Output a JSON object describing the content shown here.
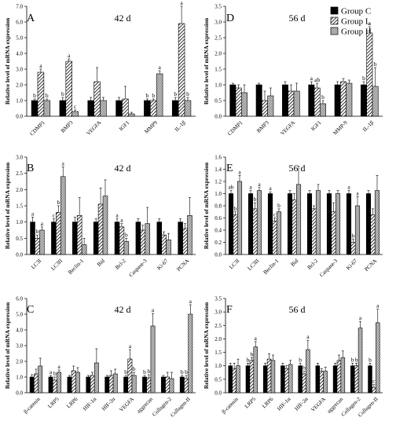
{
  "chart_data": [
    {
      "type": "bar",
      "panel": "A",
      "title": "42 d",
      "ylabel": "Relative level of mRNA expression",
      "ylim": [
        0,
        7
      ],
      "yticks": [
        "0.0",
        "1.0",
        "2.0",
        "3.0",
        "4.0",
        "5.0",
        "6.0",
        "7.0"
      ],
      "categories": [
        "CDMP1",
        "BMP3",
        "VEGFA",
        "IGF1",
        "MMP9",
        "IL-1β"
      ],
      "series": [
        {
          "name": "Group C",
          "values": [
            1.0,
            1.0,
            1.0,
            1.0,
            1.0,
            1.0
          ],
          "errors": [
            0.1,
            0.2,
            0.2,
            0.2,
            0.1,
            0.2
          ]
        },
        {
          "name": "Group L",
          "values": [
            2.8,
            3.5,
            2.2,
            1.1,
            1.0,
            5.9
          ],
          "errors": [
            0.2,
            0.15,
            0.9,
            0.8,
            0.1,
            1.1
          ]
        },
        {
          "name": "Group H",
          "values": [
            1.0,
            0.3,
            1.0,
            0.15,
            2.7,
            1.0
          ],
          "errors": [
            0.1,
            0.1,
            0.2,
            0.1,
            0.2,
            0.2
          ]
        }
      ],
      "labels": [
        [
          "b",
          "a",
          "b"
        ],
        [
          "b",
          "a",
          "c"
        ],
        [
          "",
          "",
          ""
        ],
        [
          "",
          "",
          ""
        ],
        [
          "b",
          "b",
          "a"
        ],
        [
          "b",
          "a",
          "b"
        ]
      ]
    },
    {
      "type": "bar",
      "panel": "D",
      "title": "56 d",
      "ylabel": "Relative level of mRNA expression",
      "ylim": [
        0,
        3.5
      ],
      "yticks": [
        "0.0",
        "0.5",
        "1.0",
        "1.5",
        "2.0",
        "2.5",
        "3.0",
        "3.5"
      ],
      "categories": [
        "CDMP1",
        "BMP3",
        "VEGFA",
        "IGF1",
        "MMP-9",
        "IL-1β"
      ],
      "series": [
        {
          "name": "Group C",
          "values": [
            1.0,
            1.0,
            1.0,
            1.0,
            1.0,
            1.0
          ],
          "errors": [
            0.05,
            0.05,
            0.1,
            0.1,
            0.1,
            0.1
          ]
        },
        {
          "name": "Group L",
          "values": [
            0.9,
            0.5,
            0.8,
            0.9,
            1.1,
            2.65
          ],
          "errors": [
            0.1,
            0.3,
            0.2,
            0.15,
            0.1,
            0.2
          ]
        },
        {
          "name": "Group H",
          "values": [
            0.75,
            0.65,
            0.8,
            0.4,
            1.05,
            0.95
          ],
          "errors": [
            0.25,
            0.25,
            0.25,
            0.1,
            0.1,
            0.6
          ]
        }
      ],
      "labels": [
        [
          "",
          "",
          ""
        ],
        [
          "",
          "",
          ""
        ],
        [
          "",
          "",
          ""
        ],
        [
          "a",
          "ab",
          "b"
        ],
        [
          "",
          "",
          ""
        ],
        [
          "b",
          "a",
          "b"
        ]
      ]
    },
    {
      "type": "bar",
      "panel": "B",
      "title": "42 d",
      "ylabel": "Relative level of mRNA expression",
      "ylim": [
        0,
        3
      ],
      "yticks": [
        "0.0",
        "0.5",
        "1.0",
        "1.5",
        "2.0",
        "2.5",
        "3.0"
      ],
      "categories": [
        "LC3I",
        "LC3II",
        "Beclin-1",
        "Bid",
        "Bcl-2",
        "Caspase-3",
        "Ki-67",
        "PCNA"
      ],
      "series": [
        {
          "name": "Group C",
          "values": [
            1.0,
            1.0,
            1.0,
            1.0,
            1.0,
            1.0,
            1.0,
            1.0
          ],
          "errors": [
            0.15,
            0.1,
            0.15,
            0.1,
            0.1,
            0.1,
            0.1,
            0.1
          ]
        },
        {
          "name": "Group L",
          "values": [
            0.5,
            1.3,
            1.2,
            1.55,
            0.85,
            0.75,
            0.6,
            0.8
          ],
          "errors": [
            0.1,
            0.2,
            0.55,
            0.5,
            0.1,
            0.15,
            0.1,
            0.15
          ]
        },
        {
          "name": "Group H",
          "values": [
            0.75,
            2.4,
            0.3,
            1.8,
            0.4,
            0.95,
            0.45,
            1.2
          ],
          "errors": [
            0.1,
            0.3,
            0.2,
            0.5,
            0.1,
            0.5,
            0.2,
            0.55
          ]
        }
      ],
      "labels": [
        [
          "a",
          "b",
          "a"
        ],
        [
          "c",
          "b",
          "a"
        ],
        [
          "",
          "",
          ""
        ],
        [
          "",
          "",
          ""
        ],
        [
          "a",
          "a",
          "b"
        ],
        [
          "",
          "",
          ""
        ],
        [
          "",
          "",
          ""
        ],
        [
          "",
          "",
          ""
        ]
      ]
    },
    {
      "type": "bar",
      "panel": "E",
      "title": "56 d",
      "ylabel": "Relative level of mRNA expression",
      "ylim": [
        0,
        1.6
      ],
      "yticks": [
        "0.0",
        "0.2",
        "0.4",
        "0.6",
        "0.8",
        "1.0",
        "1.2",
        "1.4",
        "1.6"
      ],
      "categories": [
        "LC3I",
        "LC3II",
        "Beclin-1",
        "Bid",
        "Bcl-2",
        "Caspase-3",
        "Ki-67",
        "PCNA"
      ],
      "series": [
        {
          "name": "Group C",
          "values": [
            1.0,
            1.0,
            1.0,
            1.0,
            1.0,
            1.0,
            1.0,
            1.0
          ],
          "errors": [
            0.05,
            0.05,
            0.03,
            0.05,
            0.05,
            0.05,
            0.05,
            0.05
          ]
        },
        {
          "name": "Group L",
          "values": [
            0.65,
            0.75,
            0.55,
            0.9,
            0.75,
            0.7,
            0.2,
            0.65
          ],
          "errors": [
            0.05,
            0.1,
            0.05,
            0.1,
            0.05,
            0.15,
            0.05,
            0.1
          ]
        },
        {
          "name": "Group H",
          "values": [
            1.2,
            1.05,
            0.7,
            1.15,
            1.05,
            1.0,
            0.8,
            1.05
          ],
          "errors": [
            0.1,
            0.05,
            0.05,
            0.3,
            0.1,
            0.05,
            0.15,
            0.25
          ]
        }
      ],
      "labels": [
        [
          "ab",
          "b",
          "a"
        ],
        [
          "a",
          "b",
          "a"
        ],
        [
          "a",
          "c",
          "b"
        ],
        [
          "",
          "",
          ""
        ],
        [
          "",
          "",
          ""
        ],
        [
          "",
          "",
          ""
        ],
        [
          "a",
          "b",
          "a"
        ],
        [
          "",
          "",
          ""
        ]
      ]
    },
    {
      "type": "bar",
      "panel": "C",
      "title": "42 d",
      "ylabel": "Relative level of mRNA expression",
      "ylim": [
        0,
        6
      ],
      "yticks": [
        "0.0",
        "1.0",
        "2.0",
        "3.0",
        "4.0",
        "5.0",
        "6.0"
      ],
      "categories": [
        "β-catenin",
        "LRP5",
        "LRP6",
        "HIF-1α",
        "HIF-2α",
        "VEGFA",
        "aggrecan",
        "Collagen-2",
        "Collagen-II"
      ],
      "series": [
        {
          "name": "Group C",
          "values": [
            1.0,
            1.0,
            1.0,
            1.0,
            1.0,
            1.0,
            1.0,
            1.0,
            1.0
          ],
          "errors": [
            0.15,
            0.1,
            0.1,
            0.1,
            0.1,
            0.1,
            0.1,
            0.1,
            0.1
          ]
        },
        {
          "name": "Group L",
          "values": [
            1.2,
            0.8,
            1.4,
            1.1,
            1.1,
            2.15,
            0.95,
            1.0,
            0.9
          ],
          "errors": [
            0.3,
            0.2,
            0.3,
            0.2,
            0.3,
            0.6,
            0.2,
            0.3,
            0.2
          ]
        },
        {
          "name": "Group H",
          "values": [
            1.7,
            1.3,
            1.3,
            1.9,
            1.2,
            1.1,
            4.25,
            0.9,
            5.0
          ],
          "errors": [
            0.5,
            0.15,
            0.3,
            0.9,
            0.3,
            0.2,
            0.8,
            0.4,
            0.6
          ]
        }
      ],
      "labels": [
        [
          "",
          "",
          ""
        ],
        [
          "a",
          "b",
          "a"
        ],
        [
          "",
          "",
          ""
        ],
        [
          "",
          "",
          ""
        ],
        [
          "",
          "",
          ""
        ],
        [
          "b",
          "a",
          "b"
        ],
        [
          "b",
          "b",
          "a"
        ],
        [
          "",
          "",
          ""
        ],
        [
          "b",
          "b",
          "a"
        ]
      ]
    },
    {
      "type": "bar",
      "panel": "F",
      "title": "56 d",
      "ylabel": "Relative level of mRNA expression",
      "ylim": [
        0,
        3.5
      ],
      "yticks": [
        "0.0",
        "0.5",
        "1.0",
        "1.5",
        "2.0",
        "2.5",
        "3.0",
        "3.5"
      ],
      "categories": [
        "β-catenin",
        "LRP5",
        "LRP6",
        "HIF-1α",
        "HIF-2α",
        "VEGFA",
        "aggrecan",
        "Collagen-2",
        "Collagen-II"
      ],
      "series": [
        {
          "name": "Group C",
          "values": [
            1.0,
            1.0,
            1.0,
            1.0,
            1.0,
            1.0,
            1.0,
            1.0,
            1.0
          ],
          "errors": [
            0.1,
            0.1,
            0.1,
            0.1,
            0.1,
            0.1,
            0.1,
            0.1,
            0.1
          ]
        },
        {
          "name": "Group L",
          "values": [
            0.9,
            1.2,
            1.25,
            0.9,
            0.7,
            0.8,
            1.2,
            1.0,
            0.2
          ],
          "errors": [
            0.2,
            0.1,
            0.2,
            0.1,
            0.1,
            0.1,
            0.2,
            0.1,
            0.1
          ]
        },
        {
          "name": "Group H",
          "values": [
            1.0,
            1.7,
            1.2,
            1.05,
            1.6,
            0.8,
            1.3,
            2.4,
            2.6
          ],
          "errors": [
            0.25,
            0.2,
            0.2,
            0.15,
            0.35,
            0.15,
            0.25,
            0.25,
            0.5
          ]
        }
      ],
      "labels": [
        [
          "",
          "",
          ""
        ],
        [
          "b",
          "b",
          "a"
        ],
        [
          "",
          "",
          ""
        ],
        [
          "",
          "",
          ""
        ],
        [
          "b",
          "b",
          "a"
        ],
        [
          "",
          "",
          ""
        ],
        [
          "",
          "",
          ""
        ],
        [
          "b",
          "b",
          "a"
        ],
        [
          "b",
          "c",
          "a"
        ]
      ]
    }
  ],
  "legend": {
    "placement": "top-right",
    "items": [
      "Group C",
      "Group L",
      "Group H"
    ]
  },
  "colors": {
    "group_c": "#000000",
    "group_l": "#ffffff",
    "group_h": "#c8c8c8"
  }
}
